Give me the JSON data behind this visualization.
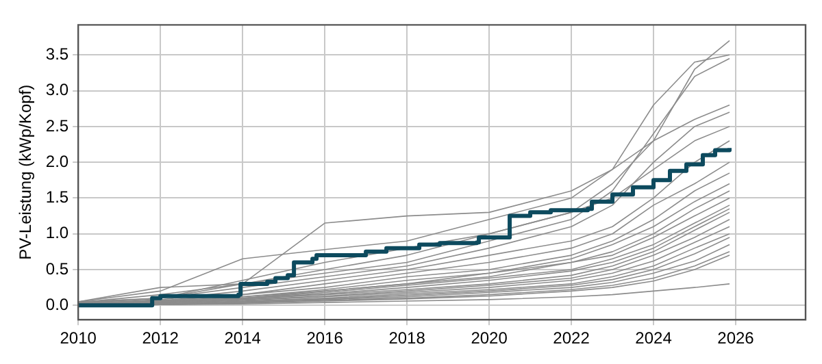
{
  "chart_data": {
    "type": "line",
    "ylabel": "PV-Leistung (kWp/Kopf)",
    "x": [
      2010,
      2012,
      2014,
      2016,
      2018,
      2020,
      2022,
      2023,
      2024,
      2025,
      2025.85
    ],
    "xlim": [
      2010,
      2027.7
    ],
    "xticks": [
      2010,
      2012,
      2014,
      2016,
      2018,
      2020,
      2022,
      2024,
      2026
    ],
    "ylim": [
      -0.2,
      3.92
    ],
    "yticks": [
      {
        "value": 0,
        "label": "0.0"
      },
      {
        "value": 0.5,
        "label": "0.5"
      },
      {
        "value": 1,
        "label": "1.0"
      },
      {
        "value": 1.5,
        "label": "1.5"
      },
      {
        "value": 2,
        "label": "2.0"
      },
      {
        "value": 2.5,
        "label": "2.5"
      },
      {
        "value": 3,
        "label": "3.0"
      },
      {
        "value": 3.5,
        "label": "3.5"
      }
    ],
    "grid": true,
    "legend": false,
    "marker": "none",
    "series": [
      {
        "color": "#8c8c8c",
        "values": [
          0.05,
          0.1,
          0.35,
          0.6,
          0.8,
          1.0,
          1.3,
          1.7,
          2.3,
          3.3,
          3.7
        ]
      },
      {
        "color": "#8c8c8c",
        "values": [
          0.05,
          0.2,
          0.65,
          0.78,
          0.9,
          1.2,
          1.5,
          1.9,
          2.8,
          3.4,
          3.5
        ]
      },
      {
        "color": "#8c8c8c",
        "values": [
          0.04,
          0.1,
          0.3,
          0.45,
          0.6,
          0.9,
          1.2,
          1.6,
          2.4,
          3.2,
          3.45
        ]
      },
      {
        "color": "#8c8c8c",
        "values": [
          0.05,
          0.25,
          0.3,
          1.15,
          1.25,
          1.3,
          1.6,
          1.9,
          2.3,
          2.6,
          2.8
        ]
      },
      {
        "color": "#8c8c8c",
        "values": [
          0.03,
          0.1,
          0.25,
          0.4,
          0.55,
          0.8,
          1.1,
          1.4,
          2.0,
          2.5,
          2.7
        ]
      },
      {
        "color": "#8c8c8c",
        "values": [
          0.04,
          0.15,
          0.3,
          0.5,
          0.7,
          1.0,
          1.3,
          1.5,
          1.9,
          2.3,
          2.5
        ]
      },
      {
        "color": "#8c8c8c",
        "values": [
          0.02,
          0.08,
          0.2,
          0.35,
          0.5,
          0.7,
          0.9,
          1.1,
          1.5,
          2.0,
          2.3
        ]
      },
      {
        "color": "#8c8c8c",
        "values": [
          0.02,
          0.06,
          0.15,
          0.3,
          0.45,
          0.6,
          0.8,
          1.0,
          1.4,
          1.7,
          2.0
        ]
      },
      {
        "color": "#8c8c8c",
        "values": [
          0.03,
          0.07,
          0.15,
          0.25,
          0.4,
          0.5,
          0.7,
          0.9,
          1.2,
          1.6,
          1.85
        ]
      },
      {
        "color": "#8c8c8c",
        "values": [
          0.02,
          0.05,
          0.12,
          0.2,
          0.3,
          0.45,
          0.65,
          0.85,
          1.1,
          1.45,
          1.7
        ]
      },
      {
        "color": "#8c8c8c",
        "values": [
          0.01,
          0.05,
          0.1,
          0.2,
          0.3,
          0.4,
          0.6,
          0.75,
          1.0,
          1.35,
          1.6
        ]
      },
      {
        "color": "#8c8c8c",
        "values": [
          0.02,
          0.06,
          0.12,
          0.22,
          0.35,
          0.45,
          0.6,
          0.7,
          0.95,
          1.25,
          1.5
        ]
      },
      {
        "color": "#8c8c8c",
        "values": [
          0.01,
          0.04,
          0.1,
          0.18,
          0.28,
          0.38,
          0.5,
          0.65,
          0.85,
          1.15,
          1.4
        ]
      },
      {
        "color": "#8c8c8c",
        "values": [
          0.02,
          0.05,
          0.1,
          0.16,
          0.25,
          0.35,
          0.48,
          0.6,
          0.8,
          1.1,
          1.35
        ]
      },
      {
        "color": "#8c8c8c",
        "values": [
          0.01,
          0.04,
          0.09,
          0.15,
          0.22,
          0.3,
          0.42,
          0.55,
          0.75,
          1.05,
          1.3
        ]
      },
      {
        "color": "#8c8c8c",
        "values": [
          0.01,
          0.03,
          0.08,
          0.13,
          0.2,
          0.28,
          0.38,
          0.5,
          0.7,
          0.95,
          1.2
        ]
      },
      {
        "color": "#8c8c8c",
        "values": [
          0.01,
          0.03,
          0.07,
          0.12,
          0.18,
          0.25,
          0.35,
          0.45,
          0.62,
          0.88,
          1.1
        ]
      },
      {
        "color": "#8c8c8c",
        "values": [
          0.01,
          0.02,
          0.06,
          0.1,
          0.16,
          0.22,
          0.3,
          0.4,
          0.55,
          0.8,
          1.0
        ]
      },
      {
        "color": "#8c8c8c",
        "values": [
          0.0,
          0.02,
          0.05,
          0.09,
          0.14,
          0.2,
          0.28,
          0.36,
          0.5,
          0.72,
          0.95
        ]
      },
      {
        "color": "#8c8c8c",
        "values": [
          0.0,
          0.02,
          0.05,
          0.08,
          0.12,
          0.18,
          0.25,
          0.32,
          0.45,
          0.62,
          0.85
        ]
      },
      {
        "color": "#8c8c8c",
        "values": [
          0.0,
          0.01,
          0.04,
          0.07,
          0.1,
          0.15,
          0.22,
          0.28,
          0.38,
          0.55,
          0.75
        ]
      },
      {
        "color": "#8c8c8c",
        "values": [
          0.0,
          0.01,
          0.03,
          0.06,
          0.09,
          0.13,
          0.2,
          0.25,
          0.34,
          0.5,
          0.7
        ]
      },
      {
        "color": "#8c8c8c",
        "values": [
          0.0,
          0.01,
          0.02,
          0.04,
          0.06,
          0.08,
          0.12,
          0.15,
          0.2,
          0.25,
          0.3
        ]
      },
      {
        "color": "#0d4a5e",
        "type": "step",
        "x": [
          2010,
          2011.7,
          2011.8,
          2012,
          2013.9,
          2013.95,
          2014.6,
          2014.8,
          2015.1,
          2015.25,
          2015.7,
          2015.8,
          2017,
          2017.5,
          2018.3,
          2018.8,
          2019.7,
          2019.75,
          2020.4,
          2020.5,
          2021,
          2021.5,
          2022.4,
          2022.5,
          2023,
          2023.5,
          2024,
          2024.4,
          2024.8,
          2025.2,
          2025.5,
          2025.85
        ],
        "values": [
          0,
          0,
          0.1,
          0.13,
          0.15,
          0.3,
          0.33,
          0.38,
          0.42,
          0.6,
          0.65,
          0.7,
          0.75,
          0.8,
          0.85,
          0.87,
          0.88,
          0.95,
          0.95,
          1.25,
          1.3,
          1.33,
          1.35,
          1.45,
          1.55,
          1.65,
          1.75,
          1.88,
          1.97,
          2.1,
          2.17,
          2.2
        ]
      }
    ]
  }
}
